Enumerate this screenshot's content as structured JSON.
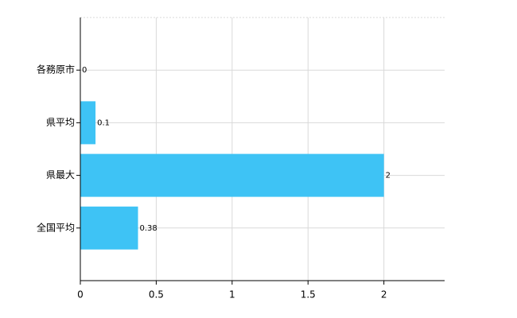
{
  "chart_data": {
    "type": "barh",
    "categories": [
      "各務原市",
      "県平均",
      "県最大",
      "全国平均"
    ],
    "values": [
      0,
      0.1,
      2,
      0.38
    ],
    "color": "#3ec3f5",
    "xlim": [
      0,
      2.4
    ],
    "xticks": [
      0,
      0.5,
      1,
      1.5,
      2
    ],
    "grid": true
  }
}
